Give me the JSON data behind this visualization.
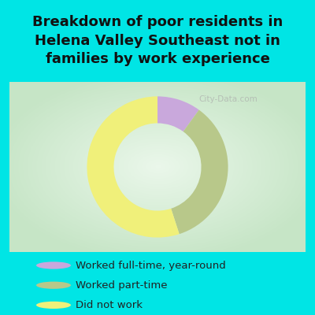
{
  "title": "Breakdown of poor residents in\nHelena Valley Southeast not in\nfamilies by work experience",
  "slices": [
    10,
    35,
    55
  ],
  "colors": [
    "#c9a8dc",
    "#b8c88a",
    "#f0f07a"
  ],
  "labels": [
    "Worked full-time, year-round",
    "Worked part-time",
    "Did not work"
  ],
  "legend_colors": [
    "#c9a8dc",
    "#b8c88a",
    "#f0f07a"
  ],
  "bg_cyan": "#00e5e5",
  "watermark": "City-Data.com",
  "title_fontsize": 13,
  "legend_fontsize": 9.5
}
